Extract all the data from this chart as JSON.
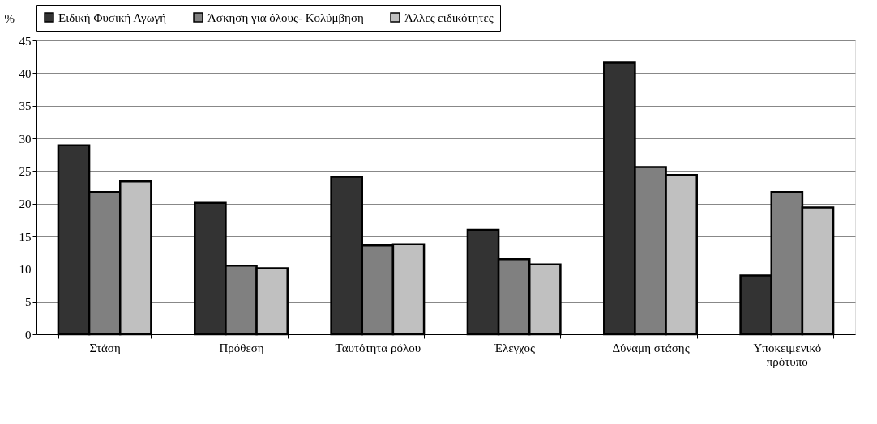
{
  "chart_data": {
    "type": "bar",
    "ylabel": "%",
    "categories": [
      "Στάση",
      "Πρόθεση",
      "Ταυτότητα ρόλου",
      "Έλεγχος",
      "Δύναμη στάσης",
      "Υποκειμενικό\nπρότυπο"
    ],
    "series": [
      {
        "name": "Ειδική Φυσική Αγωγή",
        "color": "#333333",
        "values": [
          28.9,
          20.1,
          24.1,
          16.0,
          41.6,
          9.0
        ]
      },
      {
        "name": "Άσκηση για όλους- Κολύμβηση",
        "color": "#808080",
        "values": [
          21.8,
          10.5,
          13.6,
          11.5,
          25.6,
          21.8
        ]
      },
      {
        "name": "Άλλες ειδικότητες",
        "color": "#c0c0c0",
        "values": [
          23.4,
          10.1,
          13.8,
          10.7,
          24.4,
          19.4
        ]
      }
    ],
    "ylim": [
      0,
      45
    ],
    "yticks": [
      0,
      5,
      10,
      15,
      20,
      25,
      30,
      35,
      40,
      45
    ],
    "grid": "y",
    "legend": "top"
  }
}
